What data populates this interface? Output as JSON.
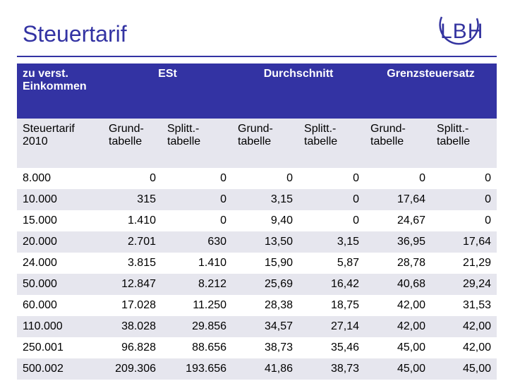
{
  "title": "Steuertarif",
  "logo": "LBH",
  "header": {
    "income": "zu verst. Einkommen",
    "est": "ESt",
    "average": "Durchschnitt",
    "marginal": "Grenzsteuersatz"
  },
  "subheader": {
    "tariff": "Steuertarif 2010",
    "basic": "Grund-tabelle",
    "split": "Splitt.-tabelle"
  },
  "rows": [
    {
      "income": "8.000",
      "est_basic": "0",
      "est_split": "0",
      "avg_basic": "0",
      "avg_split": "0",
      "marg_basic": "0",
      "marg_split": "0"
    },
    {
      "income": "10.000",
      "est_basic": "315",
      "est_split": "0",
      "avg_basic": "3,15",
      "avg_split": "0",
      "marg_basic": "17,64",
      "marg_split": "0"
    },
    {
      "income": "15.000",
      "est_basic": "1.410",
      "est_split": "0",
      "avg_basic": "9,40",
      "avg_split": "0",
      "marg_basic": "24,67",
      "marg_split": "0"
    },
    {
      "income": "20.000",
      "est_basic": "2.701",
      "est_split": "630",
      "avg_basic": "13,50",
      "avg_split": "3,15",
      "marg_basic": "36,95",
      "marg_split": "17,64"
    },
    {
      "income": "24.000",
      "est_basic": "3.815",
      "est_split": "1.410",
      "avg_basic": "15,90",
      "avg_split": "5,87",
      "marg_basic": "28,78",
      "marg_split": "21,29"
    },
    {
      "income": "50.000",
      "est_basic": "12.847",
      "est_split": "8.212",
      "avg_basic": "25,69",
      "avg_split": "16,42",
      "marg_basic": "40,68",
      "marg_split": "29,24"
    },
    {
      "income": "60.000",
      "est_basic": "17.028",
      "est_split": "11.250",
      "avg_basic": "28,38",
      "avg_split": "18,75",
      "marg_basic": "42,00",
      "marg_split": "31,53"
    },
    {
      "income": "110.000",
      "est_basic": "38.028",
      "est_split": "29.856",
      "avg_basic": "34,57",
      "avg_split": "27,14",
      "marg_basic": "42,00",
      "marg_split": "42,00"
    },
    {
      "income": "250.001",
      "est_basic": "96.828",
      "est_split": "88.656",
      "avg_basic": "38,73",
      "avg_split": "35,46",
      "marg_basic": "45,00",
      "marg_split": "42,00"
    },
    {
      "income": "500.002",
      "est_basic": "209.306",
      "est_split": "193.656",
      "avg_basic": "41,86",
      "avg_split": "38,73",
      "marg_basic": "45,00",
      "marg_split": "45,00"
    }
  ]
}
